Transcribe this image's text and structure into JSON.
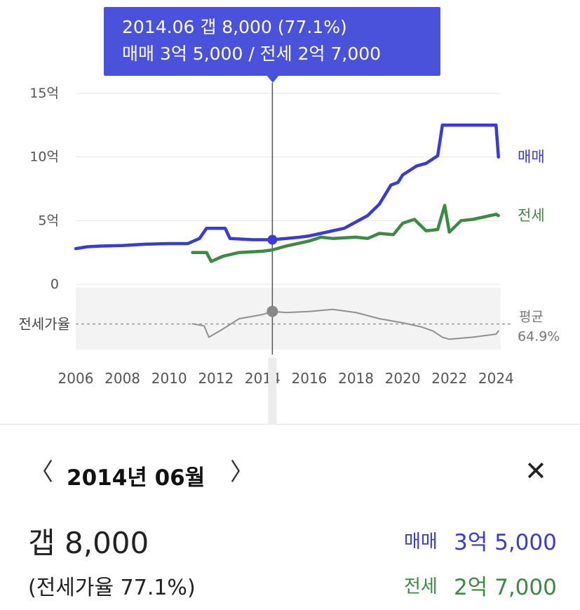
{
  "tooltip": {
    "line1": "2014.06  갭 8,000 (77.1%)",
    "line2": "매매 3억 5,000 / 전세 2억 7,000"
  },
  "colors": {
    "sale": "#3a3ad8",
    "jeonse": "#3d8a44",
    "ratio": "#909090",
    "tooltip_bg": "#4a52dc",
    "grid": "#e4e4e4",
    "ratio_band": "#f3f3f3"
  },
  "chart_data": [
    {
      "type": "line",
      "title": "",
      "ylim": [
        0,
        15
      ],
      "y_ticks": [
        {
          "value": 15,
          "label": "15억"
        },
        {
          "value": 10,
          "label": "10억"
        },
        {
          "value": 5,
          "label": "5억"
        },
        {
          "value": 0,
          "label": "0"
        }
      ],
      "x_ticks": [
        "2006",
        "2008",
        "2010",
        "2012",
        "2014",
        "2016",
        "2018",
        "2020",
        "2022",
        "2024"
      ],
      "xlim": [
        2006,
        2024.2
      ],
      "grid": true,
      "selected": {
        "x": 2014.42,
        "sale": 3.5,
        "jeonse": 2.7
      },
      "series": [
        {
          "name": "매매",
          "color": "#3a3ad8",
          "points": [
            [
              2006.0,
              2.8
            ],
            [
              2006.5,
              2.95
            ],
            [
              2007.0,
              3.0
            ],
            [
              2008.0,
              3.05
            ],
            [
              2009.0,
              3.15
            ],
            [
              2010.0,
              3.2
            ],
            [
              2010.8,
              3.2
            ],
            [
              2011.3,
              3.6
            ],
            [
              2011.6,
              4.4
            ],
            [
              2012.4,
              4.4
            ],
            [
              2012.6,
              3.6
            ],
            [
              2013.6,
              3.5
            ],
            [
              2014.0,
              3.5
            ],
            [
              2014.42,
              3.5
            ],
            [
              2015.0,
              3.6
            ],
            [
              2015.6,
              3.7
            ],
            [
              2016.0,
              3.8
            ],
            [
              2016.5,
              4.0
            ],
            [
              2017.0,
              4.2
            ],
            [
              2017.5,
              4.4
            ],
            [
              2018.0,
              4.9
            ],
            [
              2018.5,
              5.4
            ],
            [
              2019.0,
              6.3
            ],
            [
              2019.5,
              7.8
            ],
            [
              2019.8,
              8.0
            ],
            [
              2020.0,
              8.6
            ],
            [
              2020.6,
              9.3
            ],
            [
              2021.0,
              9.5
            ],
            [
              2021.5,
              10.1
            ],
            [
              2021.7,
              12.5
            ],
            [
              2022.5,
              12.5
            ],
            [
              2023.5,
              12.5
            ],
            [
              2024.0,
              12.5
            ],
            [
              2024.1,
              10.0
            ]
          ]
        },
        {
          "name": "전세",
          "color": "#3d8a44",
          "points": [
            [
              2011.0,
              2.5
            ],
            [
              2011.6,
              2.5
            ],
            [
              2011.8,
              1.8
            ],
            [
              2012.3,
              2.2
            ],
            [
              2013.0,
              2.5
            ],
            [
              2014.0,
              2.6
            ],
            [
              2014.42,
              2.7
            ],
            [
              2015.0,
              3.0
            ],
            [
              2016.0,
              3.4
            ],
            [
              2016.5,
              3.7
            ],
            [
              2017.0,
              3.6
            ],
            [
              2018.0,
              3.7
            ],
            [
              2018.5,
              3.6
            ],
            [
              2019.0,
              4.0
            ],
            [
              2019.6,
              3.9
            ],
            [
              2020.0,
              4.8
            ],
            [
              2020.5,
              5.1
            ],
            [
              2021.0,
              4.2
            ],
            [
              2021.5,
              4.3
            ],
            [
              2021.8,
              6.2
            ],
            [
              2022.0,
              4.1
            ],
            [
              2022.5,
              5.0
            ],
            [
              2023.0,
              5.1
            ],
            [
              2023.5,
              5.3
            ],
            [
              2024.0,
              5.5
            ],
            [
              2024.1,
              5.4
            ]
          ]
        }
      ]
    },
    {
      "type": "line",
      "title": "",
      "ylabel": "전세가율",
      "ylim": [
        40,
        100
      ],
      "average": {
        "value": 64.9,
        "label": "평균",
        "value_label": "64.9%"
      },
      "series": [
        {
          "name": "",
          "color": "#909090",
          "points": [
            [
              2011.0,
              65
            ],
            [
              2011.5,
              63
            ],
            [
              2011.7,
              52
            ],
            [
              2012.3,
              60
            ],
            [
              2013.0,
              70
            ],
            [
              2014.0,
              74
            ],
            [
              2014.42,
              77.1
            ],
            [
              2015.0,
              76
            ],
            [
              2016.0,
              77
            ],
            [
              2017.0,
              79
            ],
            [
              2018.0,
              76
            ],
            [
              2019.0,
              70
            ],
            [
              2020.0,
              66
            ],
            [
              2020.8,
              62
            ],
            [
              2021.3,
              58
            ],
            [
              2021.7,
              52
            ],
            [
              2022.0,
              50
            ],
            [
              2023.0,
              52
            ],
            [
              2024.0,
              55
            ],
            [
              2024.1,
              58
            ]
          ]
        }
      ]
    }
  ],
  "detail": {
    "prev_icon": "chevron-left-icon",
    "next_icon": "chevron-right-icon",
    "close_icon": "close-icon",
    "prev": "〈",
    "next": "〉",
    "close": "✕",
    "date": "2014년 06월",
    "gap": "갭 8,000",
    "ratio": "(전세가율 77.1%)",
    "sale_label": "매매",
    "sale_value": "3억 5,000",
    "jeonse_label": "전세",
    "jeonse_value": "2억 7,000"
  }
}
